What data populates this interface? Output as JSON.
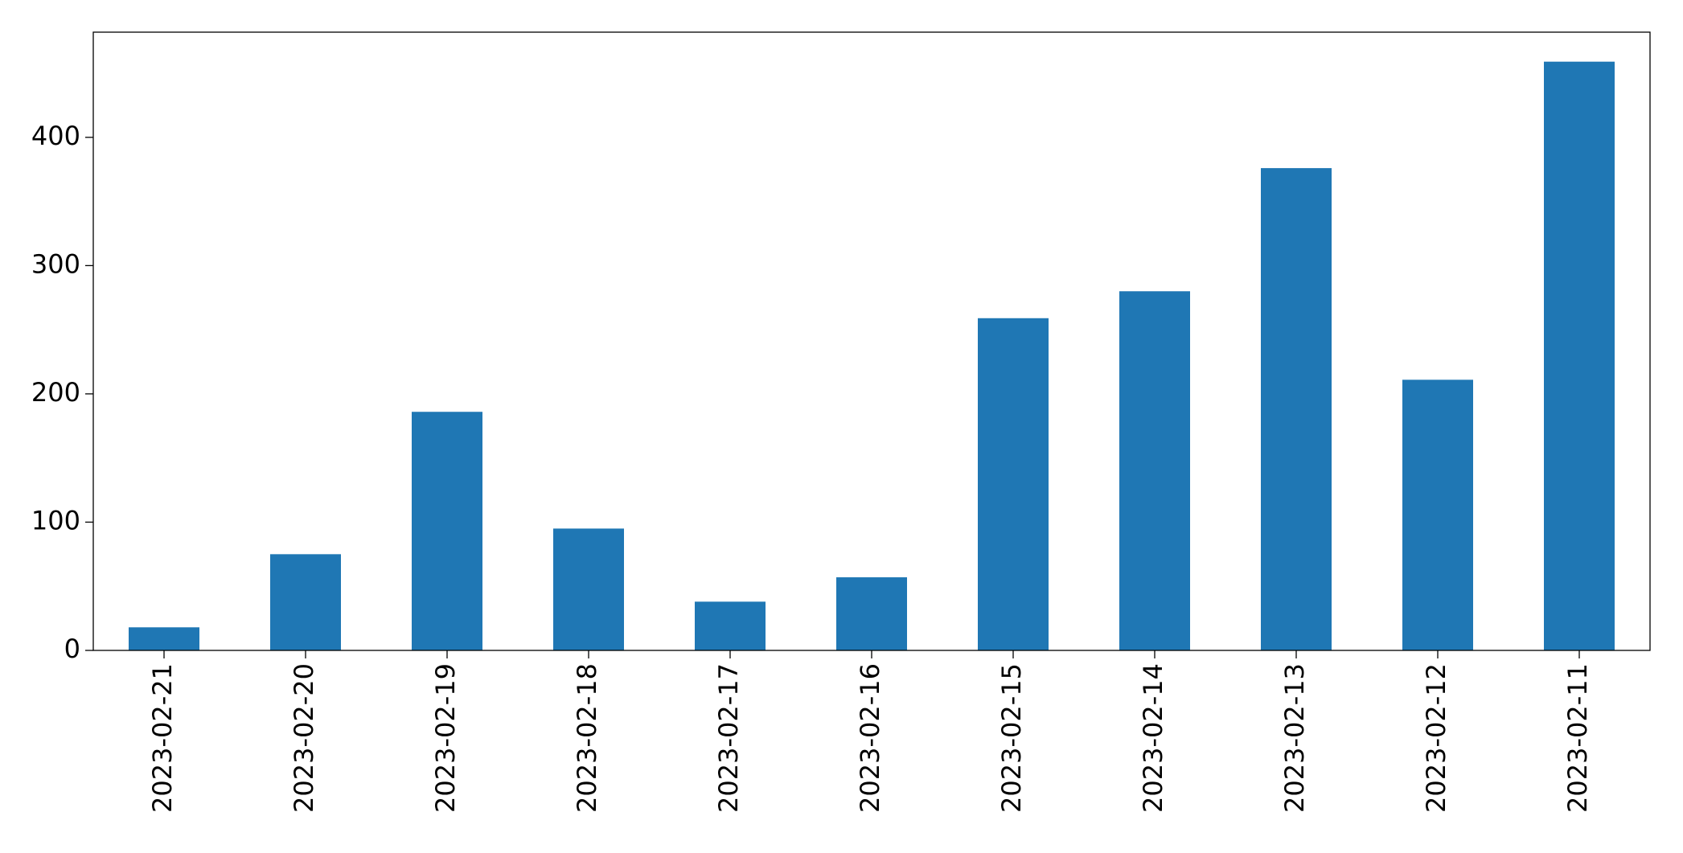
{
  "chart_data": {
    "type": "bar",
    "categories": [
      "2023-02-21",
      "2023-02-20",
      "2023-02-19",
      "2023-02-18",
      "2023-02-17",
      "2023-02-16",
      "2023-02-15",
      "2023-02-14",
      "2023-02-13",
      "2023-02-12",
      "2023-02-11"
    ],
    "values": [
      18,
      75,
      186,
      95,
      38,
      57,
      259,
      280,
      376,
      211,
      459
    ],
    "color": "#1f77b4",
    "ylim": [
      0,
      482
    ],
    "yticks": [
      0,
      100,
      200,
      300,
      400
    ],
    "grid": false
  }
}
